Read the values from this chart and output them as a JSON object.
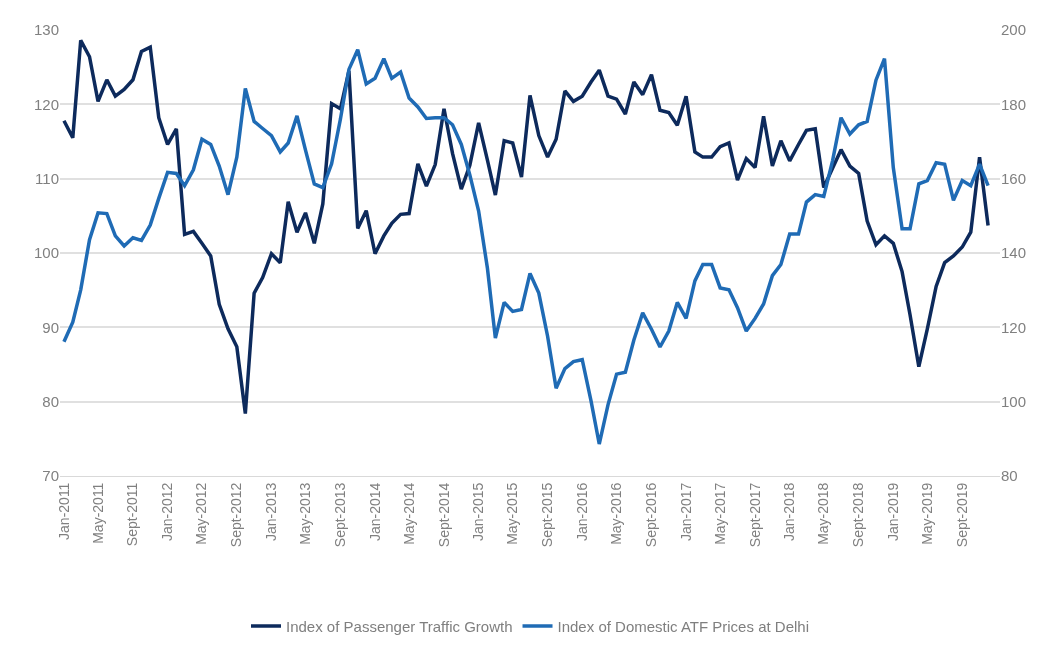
{
  "chart_data": {
    "type": "line",
    "x": [
      "2011-01",
      "2011-02",
      "2011-03",
      "2011-04",
      "2011-05",
      "2011-06",
      "2011-07",
      "2011-08",
      "2011-09",
      "2011-10",
      "2011-11",
      "2011-12",
      "2012-01",
      "2012-02",
      "2012-03",
      "2012-04",
      "2012-05",
      "2012-06",
      "2012-07",
      "2012-08",
      "2012-09",
      "2012-10",
      "2012-11",
      "2012-12",
      "2013-01",
      "2013-02",
      "2013-03",
      "2013-04",
      "2013-05",
      "2013-06",
      "2013-07",
      "2013-08",
      "2013-09",
      "2013-10",
      "2013-11",
      "2013-12",
      "2014-01",
      "2014-02",
      "2014-03",
      "2014-04",
      "2014-05",
      "2014-06",
      "2014-07",
      "2014-08",
      "2014-09",
      "2014-10",
      "2014-11",
      "2014-12",
      "2015-01",
      "2015-02",
      "2015-03",
      "2015-04",
      "2015-05",
      "2015-06",
      "2015-07",
      "2015-08",
      "2015-09",
      "2015-10",
      "2015-11",
      "2015-12",
      "2016-01",
      "2016-02",
      "2016-03",
      "2016-04",
      "2016-05",
      "2016-06",
      "2016-07",
      "2016-08",
      "2016-09",
      "2016-10",
      "2016-11",
      "2016-12",
      "2017-01",
      "2017-02",
      "2017-03",
      "2017-04",
      "2017-05",
      "2017-06",
      "2017-07",
      "2017-08",
      "2017-09",
      "2017-10",
      "2017-11",
      "2017-12",
      "2018-01",
      "2018-02",
      "2018-03",
      "2018-04",
      "2018-05",
      "2018-06",
      "2018-07",
      "2018-08",
      "2018-09",
      "2018-10",
      "2018-11",
      "2018-12",
      "2019-01",
      "2019-02",
      "2019-03",
      "2019-04",
      "2019-05",
      "2019-06",
      "2019-07",
      "2019-08",
      "2019-09",
      "2019-10",
      "2019-11",
      "2019-12"
    ],
    "series": [
      {
        "name": "Index of Passenger Traffic Growth",
        "color": "#0d2a5c",
        "values": [
          117.8,
          115.5,
          128.6,
          126.4,
          120.4,
          123.3,
          121.1,
          122,
          123.3,
          127.1,
          127.7,
          118.2,
          114.6,
          116.7,
          102.5,
          102.9,
          101.3,
          99.6,
          93.1,
          89.8,
          87.4,
          78.4,
          94.6,
          96.7,
          99.9,
          98.7,
          106.9,
          102.8,
          105.4,
          101.3,
          106.6,
          120.1,
          119.4,
          124.5,
          103.3,
          105.7,
          99.9,
          102.3,
          104,
          105.2,
          105.3,
          112,
          109,
          111.9,
          119.4,
          113.4,
          108.6,
          111.8,
          117.5,
          112.5,
          107.8,
          115.1,
          114.8,
          110.2,
          121.2,
          115.8,
          112.9,
          115.3,
          121.8,
          120.4,
          121.1,
          123,
          124.6,
          121.1,
          120.7,
          118.7,
          123,
          121.3,
          124,
          119.2,
          118.9,
          117.2,
          121.1,
          113.6,
          112.9,
          112.9,
          114.3,
          114.8,
          109.8,
          112.7,
          111.5,
          118.4,
          111.7,
          115.1,
          112.4,
          114.6,
          116.5,
          116.7,
          108.8,
          111.4,
          113.9,
          111.7,
          110.7,
          104.3,
          101.1,
          102.3,
          101.3,
          97.5,
          91.7,
          84.7,
          89.8,
          95.5,
          98.7,
          99.6,
          100.8,
          102.8,
          112.9,
          103.7
        ]
      },
      {
        "name": "Index of Domestic ATF Prices at Delhi",
        "color": "#1f6bb5",
        "axis": "y2",
        "values": [
          116.1,
          121.4,
          130.1,
          143.6,
          150.8,
          150.6,
          144.6,
          141.9,
          144.1,
          143.4,
          147.5,
          154.7,
          161.7,
          161.4,
          158.1,
          162.4,
          170.6,
          169.2,
          163.4,
          155.7,
          165.8,
          184.3,
          175.4,
          173.5,
          171.6,
          167.2,
          169.6,
          176.9,
          167.7,
          158.6,
          157.6,
          164,
          176,
          189.4,
          194.7,
          185.5,
          187,
          192.3,
          187,
          188.7,
          181.7,
          179.3,
          176.2,
          176.4,
          176.4,
          174.5,
          169.2,
          161,
          151.3,
          135.9,
          117.1,
          126.7,
          124.3,
          124.8,
          134.5,
          129.2,
          117.6,
          103.6,
          108.9,
          110.8,
          111.3,
          100.2,
          88.6,
          99.2,
          107.4,
          107.9,
          116.6,
          123.9,
          119.5,
          114.7,
          119,
          126.7,
          122.4,
          132.5,
          136.9,
          136.9,
          130.6,
          130.1,
          125.3,
          119,
          122.4,
          126.3,
          133.9,
          136.9,
          145.1,
          145.1,
          153.7,
          155.7,
          155.2,
          164.8,
          176.4,
          172,
          174.5,
          175.4,
          186.5,
          192.3,
          163,
          146.5,
          146.5,
          158.6,
          159.5,
          164.3,
          163.9,
          154.2,
          159.5,
          158.1,
          163.9,
          158.1
        ]
      }
    ],
    "xlim": [
      "2010-12-18",
      "2020-01-12"
    ],
    "xticks": [
      {
        "value": "2011-01",
        "label": "Jan-2011"
      },
      {
        "value": "2011-05",
        "label": "May-2011"
      },
      {
        "value": "2011-09",
        "label": "Sept-2011"
      },
      {
        "value": "2012-01",
        "label": "Jan-2012"
      },
      {
        "value": "2012-05",
        "label": "May-2012"
      },
      {
        "value": "2012-09",
        "label": "Sept-2012"
      },
      {
        "value": "2013-01",
        "label": "Jan-2013"
      },
      {
        "value": "2013-05",
        "label": "May-2013"
      },
      {
        "value": "2013-09",
        "label": "Sept-2013"
      },
      {
        "value": "2014-01",
        "label": "Jan-2014"
      },
      {
        "value": "2014-05",
        "label": "May-2014"
      },
      {
        "value": "2014-09",
        "label": "Sept-2014"
      },
      {
        "value": "2015-01",
        "label": "Jan-2015"
      },
      {
        "value": "2015-05",
        "label": "May-2015"
      },
      {
        "value": "2015-09",
        "label": "Sept-2015"
      },
      {
        "value": "2016-01",
        "label": "Jan-2016"
      },
      {
        "value": "2016-05",
        "label": "May-2016"
      },
      {
        "value": "2016-09",
        "label": "Sept-2016"
      },
      {
        "value": "2017-01",
        "label": "Jan-2017"
      },
      {
        "value": "2017-05",
        "label": "May-2017"
      },
      {
        "value": "2017-09",
        "label": "Sept-2017"
      },
      {
        "value": "2018-01",
        "label": "Jan-2018"
      },
      {
        "value": "2018-05",
        "label": "May-2018"
      },
      {
        "value": "2018-09",
        "label": "Sept-2018"
      },
      {
        "value": "2019-01",
        "label": "Jan-2019"
      },
      {
        "value": "2019-05",
        "label": "May-2019"
      },
      {
        "value": "2019-09",
        "label": "Sept-2019"
      }
    ],
    "ylim": [
      70,
      130
    ],
    "yticks": [
      70,
      80,
      90,
      100,
      110,
      120,
      130
    ],
    "y2lim": [
      80,
      200
    ],
    "y2ticks": [
      80,
      100,
      120,
      140,
      160,
      180,
      200
    ],
    "grid": "y",
    "legend": "bottom",
    "marker": "none",
    "line_style": "solid"
  }
}
